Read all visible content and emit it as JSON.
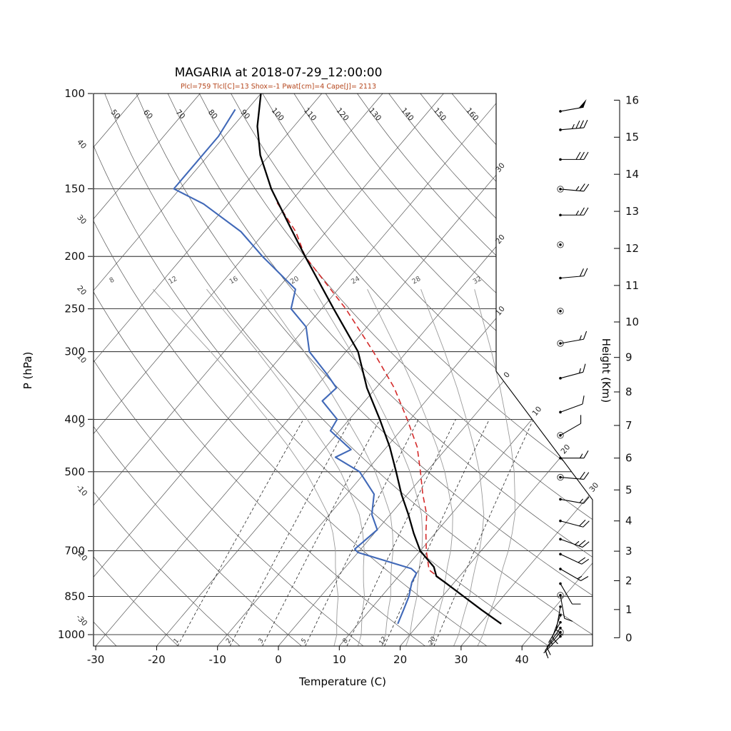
{
  "title": "MAGARIA at 2018-07-29_12:00:00",
  "subtitle": "Plcl=759 Tlcl[C]=13 Shox=-1 Pwat[cm]=4 Cape[J]= 2113",
  "colors": {
    "temperature": "#000000",
    "dewpoint": "#4169b8",
    "parcel": "#d42a2a",
    "subtitle": "#b5461c",
    "moist_adiabat": "#9a9a9a",
    "grid_line": "#555555",
    "mixing_line": "#333333"
  },
  "axes": {
    "pressure_label": "P (hPa)",
    "temp_label": "Temperature (C)",
    "height_label": "Height (Km)",
    "pressure_ticks": [
      100,
      150,
      200,
      250,
      300,
      400,
      500,
      700,
      850,
      1000
    ],
    "temp_ticks": [
      -30,
      -20,
      -10,
      0,
      10,
      20,
      30,
      40
    ],
    "height_ticks": [
      0,
      1,
      2,
      3,
      4,
      5,
      6,
      7,
      8,
      9,
      10,
      11,
      12,
      13,
      14,
      15,
      16
    ]
  },
  "chart_data": {
    "type": "skewt-logp",
    "pressure_range_hpa": [
      100,
      1050
    ],
    "isotherm_values": [
      -100,
      -90,
      -80,
      -70,
      -60,
      -50,
      -40,
      -30,
      -20,
      -10,
      0,
      10,
      20,
      30,
      40
    ],
    "dry_adiabat_values": [
      -30,
      -20,
      -10,
      0,
      10,
      20,
      30,
      40,
      50,
      60,
      70,
      80,
      90,
      100,
      110,
      120,
      130,
      140,
      150,
      160
    ],
    "right_isotherm_labels": [
      {
        "value": -30,
        "text": "30"
      },
      {
        "value": -20,
        "text": "20"
      },
      {
        "value": -10,
        "text": "10"
      },
      {
        "value": 0,
        "text": "0"
      },
      {
        "value": 10,
        "text": "10"
      },
      {
        "value": 20,
        "text": "20"
      },
      {
        "value": 30,
        "text": "30"
      }
    ],
    "moist_adiabat_values": [
      8,
      12,
      16,
      20,
      24,
      28,
      32
    ],
    "mixing_ratio_values": [
      1,
      2,
      3,
      5,
      8,
      12,
      20
    ],
    "temperature_profile": [
      [
        955,
        33.5
      ],
      [
        900,
        28.3
      ],
      [
        850,
        23.5
      ],
      [
        800,
        18.4
      ],
      [
        780,
        16.2
      ],
      [
        750,
        14.5
      ],
      [
        700,
        10
      ],
      [
        650,
        6.5
      ],
      [
        600,
        3
      ],
      [
        550,
        -1
      ],
      [
        500,
        -5
      ],
      [
        450,
        -9.5
      ],
      [
        400,
        -15
      ],
      [
        350,
        -21.5
      ],
      [
        300,
        -28
      ],
      [
        250,
        -38
      ],
      [
        200,
        -50
      ],
      [
        175,
        -57
      ],
      [
        150,
        -65
      ],
      [
        130,
        -71.5
      ],
      [
        115,
        -76
      ],
      [
        100,
        -80
      ]
    ],
    "dewpoint_profile": [
      [
        955,
        16.5
      ],
      [
        900,
        15.5
      ],
      [
        850,
        14.5
      ],
      [
        800,
        13
      ],
      [
        770,
        12.5
      ],
      [
        755,
        11
      ],
      [
        705,
        0
      ],
      [
        695,
        -1
      ],
      [
        640,
        0
      ],
      [
        600,
        -3
      ],
      [
        550,
        -5.5
      ],
      [
        500,
        -11
      ],
      [
        470,
        -17
      ],
      [
        455,
        -15.5
      ],
      [
        420,
        -21.5
      ],
      [
        400,
        -22
      ],
      [
        370,
        -27
      ],
      [
        350,
        -26.5
      ],
      [
        330,
        -30
      ],
      [
        300,
        -36
      ],
      [
        270,
        -40
      ],
      [
        250,
        -45
      ],
      [
        230,
        -47
      ],
      [
        200,
        -57
      ],
      [
        180,
        -64
      ],
      [
        160,
        -74
      ],
      [
        150,
        -81
      ],
      [
        135,
        -81
      ],
      [
        120,
        -81
      ],
      [
        107,
        -82
      ]
    ],
    "parcel_profile": [
      [
        955,
        33.5
      ],
      [
        900,
        28.3
      ],
      [
        850,
        23.5
      ],
      [
        800,
        18.4
      ],
      [
        759,
        14.1
      ],
      [
        700,
        11
      ],
      [
        650,
        8.5
      ],
      [
        600,
        6
      ],
      [
        550,
        2.5
      ],
      [
        500,
        -1
      ],
      [
        450,
        -5
      ],
      [
        400,
        -10.5
      ],
      [
        350,
        -17
      ],
      [
        300,
        -25.5
      ],
      [
        250,
        -36
      ],
      [
        200,
        -50
      ],
      [
        180,
        -55
      ],
      [
        158,
        -62.5
      ]
    ],
    "wind_barbs": [
      [
        15.7,
        50,
        80,
        ""
      ],
      [
        15.2,
        35,
        85,
        ""
      ],
      [
        14.4,
        30,
        90,
        ""
      ],
      [
        13.6,
        25,
        95,
        "c"
      ],
      [
        12.9,
        25,
        90,
        ""
      ],
      [
        12.1,
        0,
        0,
        "calm"
      ],
      [
        11.2,
        20,
        85,
        ""
      ],
      [
        10.3,
        0,
        0,
        "calm"
      ],
      [
        9.4,
        15,
        80,
        "c"
      ],
      [
        8.4,
        15,
        75,
        ""
      ],
      [
        7.4,
        10,
        70,
        ""
      ],
      [
        6.7,
        10,
        60,
        "c"
      ],
      [
        6.0,
        15,
        90,
        ""
      ],
      [
        5.4,
        20,
        95,
        "c"
      ],
      [
        4.7,
        15,
        100,
        ""
      ],
      [
        4.0,
        20,
        105,
        ""
      ],
      [
        3.4,
        25,
        110,
        ""
      ],
      [
        2.9,
        20,
        115,
        ""
      ],
      [
        2.4,
        15,
        120,
        ""
      ],
      [
        1.9,
        10,
        150,
        ""
      ],
      [
        1.5,
        10,
        170,
        "c"
      ],
      [
        1.1,
        10,
        190,
        ""
      ],
      [
        0.8,
        10,
        200,
        ""
      ],
      [
        0.55,
        5,
        210,
        ""
      ],
      [
        0.35,
        10,
        215,
        ""
      ],
      [
        0.2,
        10,
        220,
        "c"
      ],
      [
        0.05,
        5,
        225,
        ""
      ]
    ]
  }
}
